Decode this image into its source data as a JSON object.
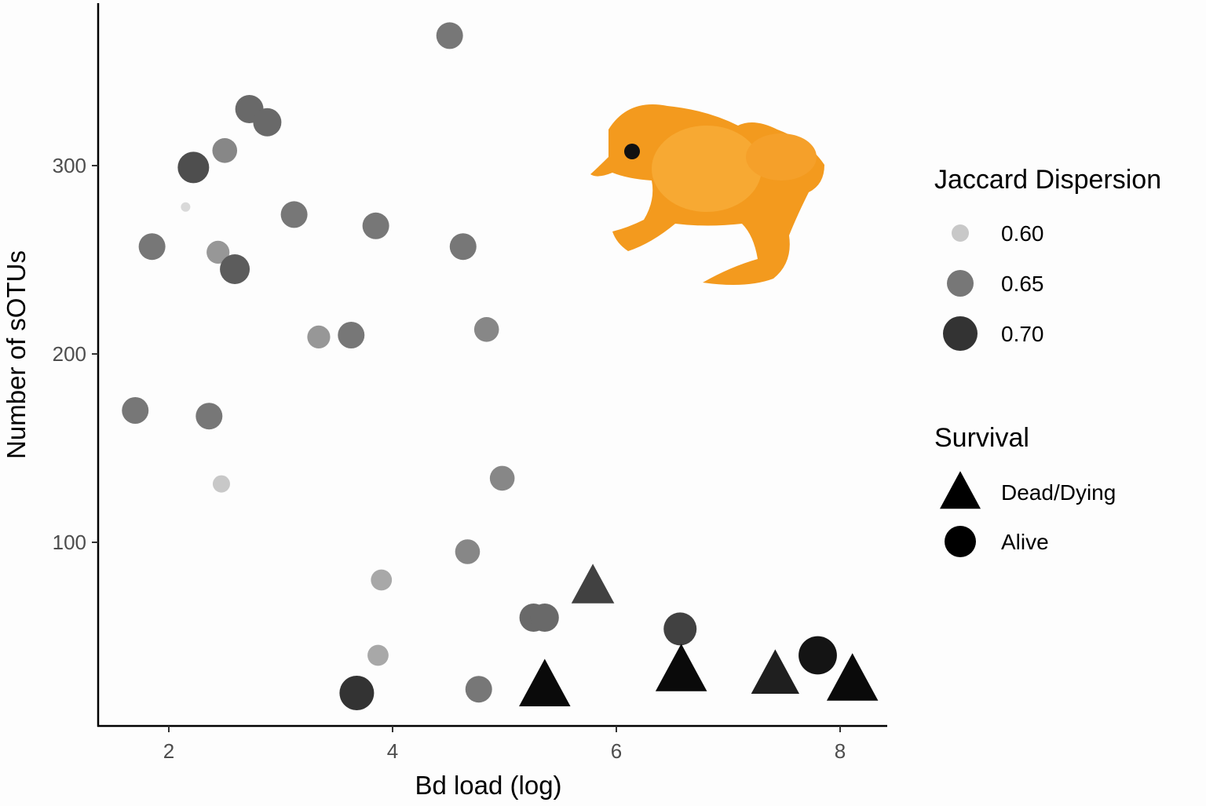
{
  "chart_data": {
    "type": "scatter",
    "title": "",
    "xlabel": "Bd load (log)",
    "ylabel": "Number of sOTUs",
    "xlim": [
      1.4,
      8.5
    ],
    "ylim": [
      5,
      380
    ],
    "xticks": [
      "2",
      "4",
      "6",
      "8"
    ],
    "yticks": [
      "100",
      "200",
      "300"
    ],
    "grid": false,
    "legend_position": "right",
    "legend": {
      "size_color_title": "Jaccard Dispersion",
      "size_color_entries": [
        {
          "label": "0.60",
          "value": 0.6
        },
        {
          "label": "0.65",
          "value": 0.65
        },
        {
          "label": "0.70",
          "value": 0.7
        }
      ],
      "shape_title": "Survival",
      "shape_entries": [
        {
          "label": "Dead/Dying",
          "shape": "triangle"
        },
        {
          "label": "Alive",
          "shape": "circle"
        }
      ]
    },
    "colors": {
      "low": "#c8c8c8",
      "mid": "#777777",
      "high": "#333333",
      "max": "#000000"
    },
    "points": [
      {
        "x": 4.51,
        "y": 369,
        "dispersion": 0.65,
        "survival": "Alive"
      },
      {
        "x": 2.72,
        "y": 330,
        "dispersion": 0.66,
        "survival": "Alive"
      },
      {
        "x": 2.88,
        "y": 323,
        "dispersion": 0.66,
        "survival": "Alive"
      },
      {
        "x": 2.5,
        "y": 308,
        "dispersion": 0.64,
        "survival": "Alive"
      },
      {
        "x": 2.22,
        "y": 299,
        "dispersion": 0.68,
        "survival": "Alive"
      },
      {
        "x": 2.15,
        "y": 278,
        "dispersion": 0.58,
        "survival": "Alive"
      },
      {
        "x": 3.12,
        "y": 274,
        "dispersion": 0.65,
        "survival": "Alive"
      },
      {
        "x": 3.85,
        "y": 268,
        "dispersion": 0.65,
        "survival": "Alive"
      },
      {
        "x": 1.85,
        "y": 257,
        "dispersion": 0.65,
        "survival": "Alive"
      },
      {
        "x": 2.44,
        "y": 254,
        "dispersion": 0.63,
        "survival": "Alive"
      },
      {
        "x": 2.59,
        "y": 245,
        "dispersion": 0.67,
        "survival": "Alive"
      },
      {
        "x": 4.63,
        "y": 257,
        "dispersion": 0.65,
        "survival": "Alive"
      },
      {
        "x": 3.34,
        "y": 209,
        "dispersion": 0.63,
        "survival": "Alive"
      },
      {
        "x": 3.63,
        "y": 210,
        "dispersion": 0.65,
        "survival": "Alive"
      },
      {
        "x": 4.84,
        "y": 213,
        "dispersion": 0.64,
        "survival": "Alive"
      },
      {
        "x": 1.7,
        "y": 170,
        "dispersion": 0.65,
        "survival": "Alive"
      },
      {
        "x": 2.36,
        "y": 167,
        "dispersion": 0.65,
        "survival": "Alive"
      },
      {
        "x": 2.47,
        "y": 131,
        "dispersion": 0.6,
        "survival": "Alive"
      },
      {
        "x": 4.98,
        "y": 134,
        "dispersion": 0.64,
        "survival": "Alive"
      },
      {
        "x": 4.67,
        "y": 95,
        "dispersion": 0.64,
        "survival": "Alive"
      },
      {
        "x": 3.9,
        "y": 80,
        "dispersion": 0.62,
        "survival": "Alive"
      },
      {
        "x": 5.26,
        "y": 60,
        "dispersion": 0.66,
        "survival": "Alive"
      },
      {
        "x": 5.36,
        "y": 60,
        "dispersion": 0.66,
        "survival": "Alive"
      },
      {
        "x": 3.87,
        "y": 40,
        "dispersion": 0.62,
        "survival": "Alive"
      },
      {
        "x": 3.68,
        "y": 20,
        "dispersion": 0.7,
        "survival": "Alive"
      },
      {
        "x": 4.77,
        "y": 22,
        "dispersion": 0.65,
        "survival": "Alive"
      },
      {
        "x": 6.57,
        "y": 54,
        "dispersion": 0.69,
        "survival": "Alive"
      },
      {
        "x": 7.8,
        "y": 40,
        "dispersion": 0.73,
        "survival": "Alive"
      },
      {
        "x": 5.79,
        "y": 76,
        "dispersion": 0.69,
        "survival": "Dead/Dying"
      },
      {
        "x": 5.36,
        "y": 23,
        "dispersion": 0.74,
        "survival": "Dead/Dying"
      },
      {
        "x": 6.58,
        "y": 31,
        "dispersion": 0.74,
        "survival": "Dead/Dying"
      },
      {
        "x": 7.42,
        "y": 29,
        "dispersion": 0.72,
        "survival": "Dead/Dying"
      },
      {
        "x": 8.11,
        "y": 26,
        "dispersion": 0.74,
        "survival": "Dead/Dying"
      }
    ]
  }
}
